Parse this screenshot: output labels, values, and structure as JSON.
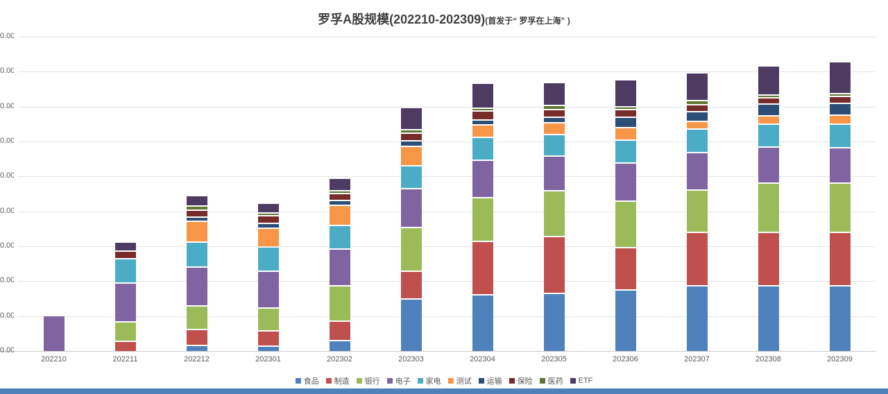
{
  "title": {
    "main": "罗孚A股规模(202210-202309)",
    "suffix": "(首发于“ 罗孚在上海” )"
  },
  "y_axis": {
    "visible_tick_label": "0.00",
    "tick_count": 10,
    "note_visible": "labels clipped at left edge of image"
  },
  "footer": {
    "strip_color": "#4F81BD"
  },
  "chart_data": {
    "type": "bar",
    "stacked": true,
    "title": "罗孚A股规模(202210-202309)(首发于“ 罗孚在上海” )",
    "xlabel": "",
    "ylabel": "",
    "ylim": [
      0,
      900
    ],
    "y_tick_step": 100,
    "grid": true,
    "legend_position": "bottom",
    "categories": [
      "202210",
      "202211",
      "202212",
      "202301",
      "202302",
      "202303",
      "202304",
      "202305",
      "202306",
      "202307",
      "202308",
      "202309"
    ],
    "series": [
      {
        "name": "食品",
        "color": "#4F81BD",
        "values": [
          0,
          0,
          15,
          12,
          27,
          147,
          159,
          164,
          173,
          185,
          185,
          185
        ]
      },
      {
        "name": "制造",
        "color": "#C0504D",
        "values": [
          0,
          25,
          40,
          40,
          53,
          76,
          149,
          159,
          117,
          149,
          149,
          148
        ]
      },
      {
        "name": "银行",
        "color": "#9BBB59",
        "values": [
          0,
          53,
          64,
          61,
          97,
          121,
          121,
          126,
          129,
          118,
          136,
          137
        ]
      },
      {
        "name": "电子",
        "color": "#8064A2",
        "values": [
          100,
          107,
          107,
          102,
          102,
          107,
          104,
          95,
          106,
          103,
          100,
          99
        ]
      },
      {
        "name": "家电",
        "color": "#4BACC6",
        "values": [
          0,
          66,
          68,
          65,
          63,
          61,
          62,
          58,
          62,
          64,
          61,
          62
        ]
      },
      {
        "name": "测试",
        "color": "#F79646",
        "values": [
          0,
          0,
          56,
          51,
          53,
          53,
          32,
          30,
          31,
          17,
          21,
          22
        ]
      },
      {
        "name": "运输",
        "color": "#2C4D75",
        "values": [
          0,
          0,
          7,
          9,
          10,
          11,
          10,
          12,
          26,
          23,
          30,
          30
        ]
      },
      {
        "name": "保险",
        "color": "#772C2A",
        "values": [
          0,
          18,
          17,
          18,
          16,
          18,
          20,
          18,
          18,
          17,
          14,
          17
        ]
      },
      {
        "name": "医药",
        "color": "#5F7530",
        "values": [
          0,
          0,
          8,
          4,
          5,
          5,
          5,
          7,
          4,
          7,
          3,
          3
        ]
      },
      {
        "name": "ETF",
        "color": "#4D3B62",
        "values": [
          0,
          21,
          26,
          24,
          31,
          61,
          68,
          63,
          73,
          75,
          79,
          87
        ]
      }
    ]
  }
}
